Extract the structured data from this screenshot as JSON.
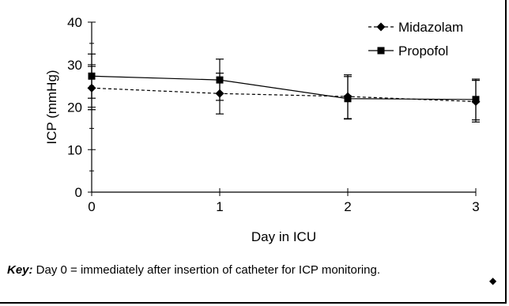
{
  "chart_data": {
    "type": "line",
    "title": "",
    "xlabel": "Day in ICU",
    "ylabel": "ICP (mmHg)",
    "xlim": [
      0,
      3
    ],
    "ylim": [
      0,
      40
    ],
    "x": [
      0,
      1,
      2,
      3
    ],
    "x_ticks": [
      "0",
      "1",
      "2",
      "3"
    ],
    "y_ticks": [
      "0",
      "10",
      "20",
      "30",
      "40"
    ],
    "grid": false,
    "legend_position": "top-right",
    "series": [
      {
        "name": "Midazolam",
        "values": [
          24.5,
          23.2,
          22.5,
          21.3
        ],
        "error_low": [
          19.4,
          18.4,
          17.2,
          16.5
        ],
        "error_high": [
          29.6,
          28.0,
          27.6,
          26.3
        ],
        "marker": "diamond",
        "line_style": "dashed",
        "color": "#000000"
      },
      {
        "name": "Propofol",
        "values": [
          27.3,
          26.4,
          22.0,
          21.8
        ],
        "error_low": [
          22.1,
          21.6,
          17.3,
          17.0
        ],
        "error_high": [
          32.5,
          31.3,
          27.2,
          26.6
        ],
        "marker": "square",
        "line_style": "solid",
        "color": "#000000"
      }
    ]
  },
  "footnote": {
    "key_label": "Key:",
    "key_text": " Day 0 = immediately after insertion of catheter for ICP monitoring."
  }
}
